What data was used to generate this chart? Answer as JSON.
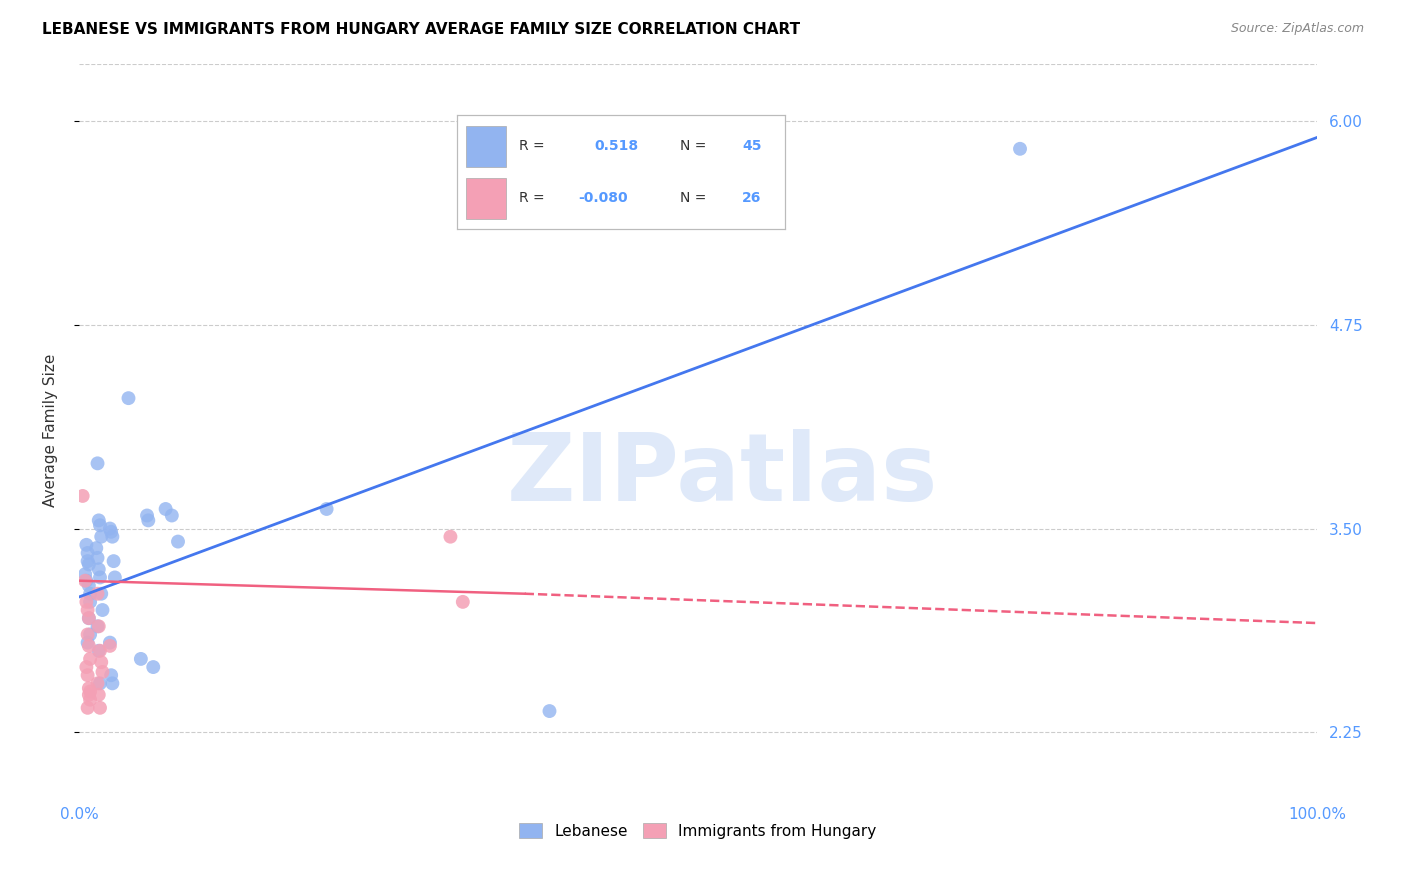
{
  "title": "LEBANESE VS IMMIGRANTS FROM HUNGARY AVERAGE FAMILY SIZE CORRELATION CHART",
  "source": "Source: ZipAtlas.com",
  "ylabel": "Average Family Size",
  "xlim": [
    0.0,
    1.0
  ],
  "ylim": [
    1.85,
    6.35
  ],
  "yticks": [
    2.25,
    3.5,
    4.75,
    6.0
  ],
  "background_color": "#ffffff",
  "grid_color": "#cccccc",
  "watermark": "ZIPatlas",
  "legend_R_blue": "0.518",
  "legend_N_blue": "45",
  "legend_R_pink": "-0.080",
  "legend_N_pink": "26",
  "blue_color": "#92b4f0",
  "pink_color": "#f4a0b5",
  "blue_line_color": "#4477ee",
  "pink_line_color": "#f06080",
  "label_color": "#5599ff",
  "blue_scatter": [
    [
      0.005,
      3.22
    ],
    [
      0.006,
      3.18
    ],
    [
      0.007,
      3.3
    ],
    [
      0.008,
      3.15
    ],
    [
      0.009,
      3.1
    ],
    [
      0.006,
      3.4
    ],
    [
      0.007,
      3.35
    ],
    [
      0.008,
      3.28
    ],
    [
      0.009,
      3.05
    ],
    [
      0.008,
      2.95
    ],
    [
      0.009,
      2.85
    ],
    [
      0.007,
      2.8
    ],
    [
      0.015,
      3.9
    ],
    [
      0.016,
      3.55
    ],
    [
      0.017,
      3.52
    ],
    [
      0.018,
      3.45
    ],
    [
      0.014,
      3.38
    ],
    [
      0.015,
      3.32
    ],
    [
      0.016,
      3.25
    ],
    [
      0.017,
      3.2
    ],
    [
      0.018,
      3.1
    ],
    [
      0.019,
      3.0
    ],
    [
      0.015,
      2.9
    ],
    [
      0.016,
      2.75
    ],
    [
      0.017,
      2.55
    ],
    [
      0.025,
      3.5
    ],
    [
      0.026,
      3.48
    ],
    [
      0.027,
      3.45
    ],
    [
      0.028,
      3.3
    ],
    [
      0.029,
      3.2
    ],
    [
      0.025,
      2.8
    ],
    [
      0.026,
      2.6
    ],
    [
      0.027,
      2.55
    ],
    [
      0.04,
      4.3
    ],
    [
      0.055,
      3.58
    ],
    [
      0.056,
      3.55
    ],
    [
      0.05,
      2.7
    ],
    [
      0.06,
      2.65
    ],
    [
      0.07,
      3.62
    ],
    [
      0.075,
      3.58
    ],
    [
      0.08,
      3.42
    ],
    [
      0.2,
      3.62
    ],
    [
      0.38,
      2.38
    ],
    [
      0.76,
      5.83
    ],
    [
      0.41,
      5.8
    ]
  ],
  "pink_scatter": [
    [
      0.003,
      3.7
    ],
    [
      0.005,
      3.18
    ],
    [
      0.006,
      3.05
    ],
    [
      0.007,
      3.0
    ],
    [
      0.008,
      2.95
    ],
    [
      0.007,
      2.85
    ],
    [
      0.008,
      2.78
    ],
    [
      0.009,
      2.7
    ],
    [
      0.006,
      2.65
    ],
    [
      0.007,
      2.6
    ],
    [
      0.008,
      2.52
    ],
    [
      0.009,
      2.5
    ],
    [
      0.008,
      2.48
    ],
    [
      0.009,
      2.45
    ],
    [
      0.007,
      2.4
    ],
    [
      0.015,
      3.1
    ],
    [
      0.016,
      2.9
    ],
    [
      0.017,
      2.75
    ],
    [
      0.018,
      2.68
    ],
    [
      0.019,
      2.62
    ],
    [
      0.015,
      2.55
    ],
    [
      0.016,
      2.48
    ],
    [
      0.017,
      2.4
    ],
    [
      0.025,
      2.78
    ],
    [
      0.3,
      3.45
    ],
    [
      0.31,
      3.05
    ]
  ],
  "blue_trendline": [
    [
      0.0,
      3.08
    ],
    [
      1.0,
      5.9
    ]
  ],
  "pink_trendline_solid": [
    [
      0.0,
      3.18
    ],
    [
      0.36,
      3.1
    ]
  ],
  "pink_trendline_dashed": [
    [
      0.36,
      3.1
    ],
    [
      1.0,
      2.92
    ]
  ]
}
